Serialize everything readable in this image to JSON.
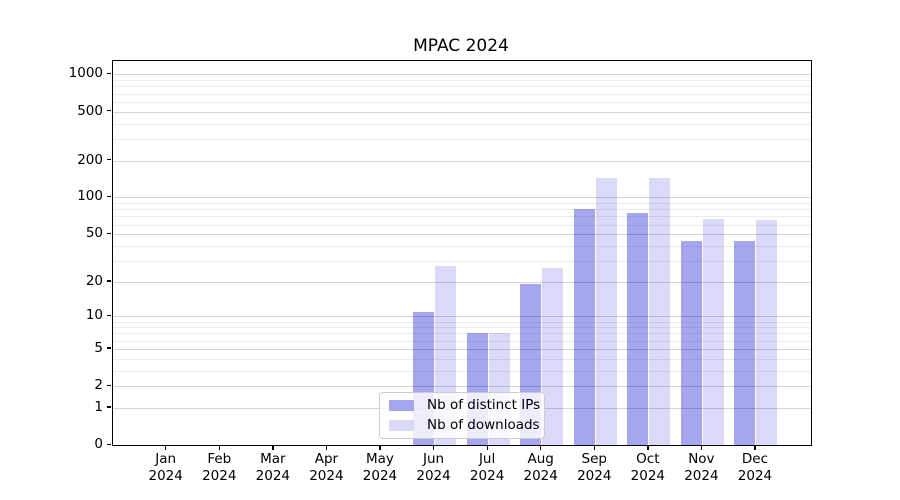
{
  "chart_data": {
    "type": "bar",
    "title": "MPAC 2024",
    "categories": [
      "Jan 2024",
      "Feb 2024",
      "Mar 2024",
      "Apr 2024",
      "May 2024",
      "Jun 2024",
      "Jul 2024",
      "Aug 2024",
      "Sep 2024",
      "Oct 2024",
      "Nov 2024",
      "Dec 2024"
    ],
    "series": [
      {
        "name": "Nb of distinct IPs",
        "color": "#a6a6ef",
        "values": [
          0,
          0,
          0,
          0,
          0,
          11,
          7,
          19,
          80,
          75,
          44,
          44
        ]
      },
      {
        "name": "Nb of downloads",
        "color": "#dadaf8",
        "values": [
          0,
          0,
          0,
          0,
          0,
          27,
          7,
          26,
          145,
          145,
          67,
          65
        ]
      }
    ],
    "yscale": "log1p",
    "ylim": [
      0,
      1285
    ],
    "y_ticks": [
      {
        "value": 1000,
        "label": "1000"
      },
      {
        "value": 500,
        "label": "500"
      },
      {
        "value": 200,
        "label": "200"
      },
      {
        "value": 100,
        "label": "100"
      },
      {
        "value": 50,
        "label": "50"
      },
      {
        "value": 20,
        "label": "20"
      },
      {
        "value": 10,
        "label": "10"
      },
      {
        "value": 5,
        "label": "5"
      },
      {
        "value": 2,
        "label": "2"
      },
      {
        "value": 1,
        "label": "1"
      },
      {
        "value": 0,
        "label": "0"
      }
    ],
    "y_minor_ticks": [
      3,
      4,
      6,
      7,
      8,
      9,
      30,
      40,
      60,
      70,
      80,
      90,
      300,
      400,
      600,
      700,
      800,
      900
    ],
    "grid": "on",
    "legend_position": "lower center inside"
  },
  "colors": {
    "grid_major": "#d5d5d5",
    "grid_minor": "#ececec",
    "spine": "#000000",
    "text": "#000000",
    "legend_border": "#cccccc"
  }
}
